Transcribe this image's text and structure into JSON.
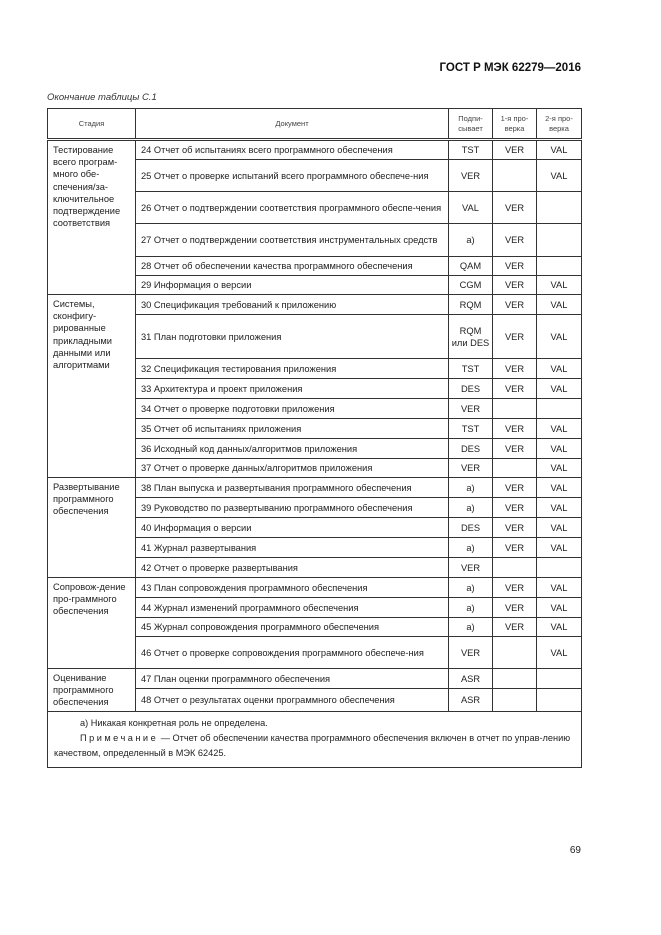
{
  "header": {
    "standard": "ГОСТ Р МЭК 62279—2016"
  },
  "caption": "Окончание таблицы С.1",
  "table": {
    "columns": [
      "Стадия",
      "Документ",
      "Подпи-сывает",
      "1-я про-верка",
      "2-я про-верка"
    ],
    "groups": [
      {
        "stage": "Тестирование всего програм-много обе-спечения/за-ключительное подтверждение соответствия",
        "rows": [
          {
            "doc": "24 Отчет об испытаниях всего программного обеспечения",
            "sign": "TST",
            "v1": "VER",
            "v2": "VAL",
            "h": 20
          },
          {
            "doc": "25 Отчет о проверке испытаний всего программного обеспече-ния",
            "sign": "VER",
            "v1": "",
            "v2": "VAL",
            "h": 32
          },
          {
            "doc": "26 Отчет о подтверждении соответствия программного обеспе-чения",
            "sign": "VAL",
            "v1": "VER",
            "v2": "",
            "h": 32
          },
          {
            "doc": "27 Отчет о подтверждении соответствия инструментальных средств",
            "sign": "а)",
            "v1": "VER",
            "v2": "",
            "h": 33
          },
          {
            "doc": "28 Отчет об обеспечении качества программного обеспечения",
            "sign": "QAM",
            "v1": "VER",
            "v2": "",
            "h": 19
          },
          {
            "doc": "29 Информация о версии",
            "sign": "CGM",
            "v1": "VER",
            "v2": "VAL",
            "h": 19
          }
        ]
      },
      {
        "stage": "Системы, сконфигу-рированные прикладными данными или алгоритмами",
        "rows": [
          {
            "doc": "30 Спецификация требований к приложению",
            "sign": "RQM",
            "v1": "VER",
            "v2": "VAL",
            "h": 20
          },
          {
            "doc": "31 План подготовки приложения",
            "sign": "RQM или DES",
            "v1": "VER",
            "v2": "VAL",
            "h": 44
          },
          {
            "doc": "32 Спецификация тестирования приложения",
            "sign": "TST",
            "v1": "VER",
            "v2": "VAL",
            "h": 20
          },
          {
            "doc": "33 Архитектура и проект приложения",
            "sign": "DES",
            "v1": "VER",
            "v2": "VAL",
            "h": 20
          },
          {
            "doc": "34 Отчет о проверке подготовки приложения",
            "sign": "VER",
            "v1": "",
            "v2": "",
            "h": 20
          },
          {
            "doc": "35 Отчет об испытаниях приложения",
            "sign": "TST",
            "v1": "VER",
            "v2": "VAL",
            "h": 20
          },
          {
            "doc": "36 Исходный код данных/алгоритмов приложения",
            "sign": "DES",
            "v1": "VER",
            "v2": "VAL",
            "h": 20
          },
          {
            "doc": "37 Отчет о проверке данных/алгоритмов приложения",
            "sign": "VER",
            "v1": "",
            "v2": "VAL",
            "h": 19
          }
        ]
      },
      {
        "stage": "Развертывание программного обеспечения",
        "rows": [
          {
            "doc": "38 План выпуска и развертывания программного обеспечения",
            "sign": "а)",
            "v1": "VER",
            "v2": "VAL",
            "h": 20
          },
          {
            "doc": "39 Руководство по развертыванию программного обеспечения",
            "sign": "а)",
            "v1": "VER",
            "v2": "VAL",
            "h": 20
          },
          {
            "doc": "40 Информация о версии",
            "sign": "DES",
            "v1": "VER",
            "v2": "VAL",
            "h": 20
          },
          {
            "doc": "41 Журнал развертывания",
            "sign": "а)",
            "v1": "VER",
            "v2": "VAL",
            "h": 20
          },
          {
            "doc": "42 Отчет о проверке развертывания",
            "sign": "VER",
            "v1": "",
            "v2": "",
            "h": 20
          }
        ]
      },
      {
        "stage": "Сопровож-дение про-граммного обеспечения",
        "rows": [
          {
            "doc": "43 План сопровождения программного обеспечения",
            "sign": "а)",
            "v1": "VER",
            "v2": "VAL",
            "h": 20
          },
          {
            "doc": "44 Журнал изменений программного обеспечения",
            "sign": "а)",
            "v1": "VER",
            "v2": "VAL",
            "h": 20
          },
          {
            "doc": "45 Журнал сопровождения программного обеспечения",
            "sign": "а)",
            "v1": "VER",
            "v2": "VAL",
            "h": 19
          },
          {
            "doc": "46 Отчет о проверке сопровождения программного обеспече-ния",
            "sign": "VER",
            "v1": "",
            "v2": "VAL",
            "h": 32
          }
        ]
      },
      {
        "stage": "Оценивание программного обеспечения",
        "rows": [
          {
            "doc": "47 План оценки программного обеспечения",
            "sign": "ASR",
            "v1": "",
            "v2": "",
            "h": 20
          },
          {
            "doc": "48 Отчет о результатах оценки программного обеспечения",
            "sign": "ASR",
            "v1": "",
            "v2": "",
            "h": 23
          }
        ]
      }
    ],
    "footnote": "а) Никакая конкретная роль не определена.",
    "note_label": "Примечание",
    "note_text": " — Отчет об обеспечении качества программного обеспечения включен в отчет по управ-лению качеством, определенный в МЭК 62425."
  },
  "page_number": "69"
}
